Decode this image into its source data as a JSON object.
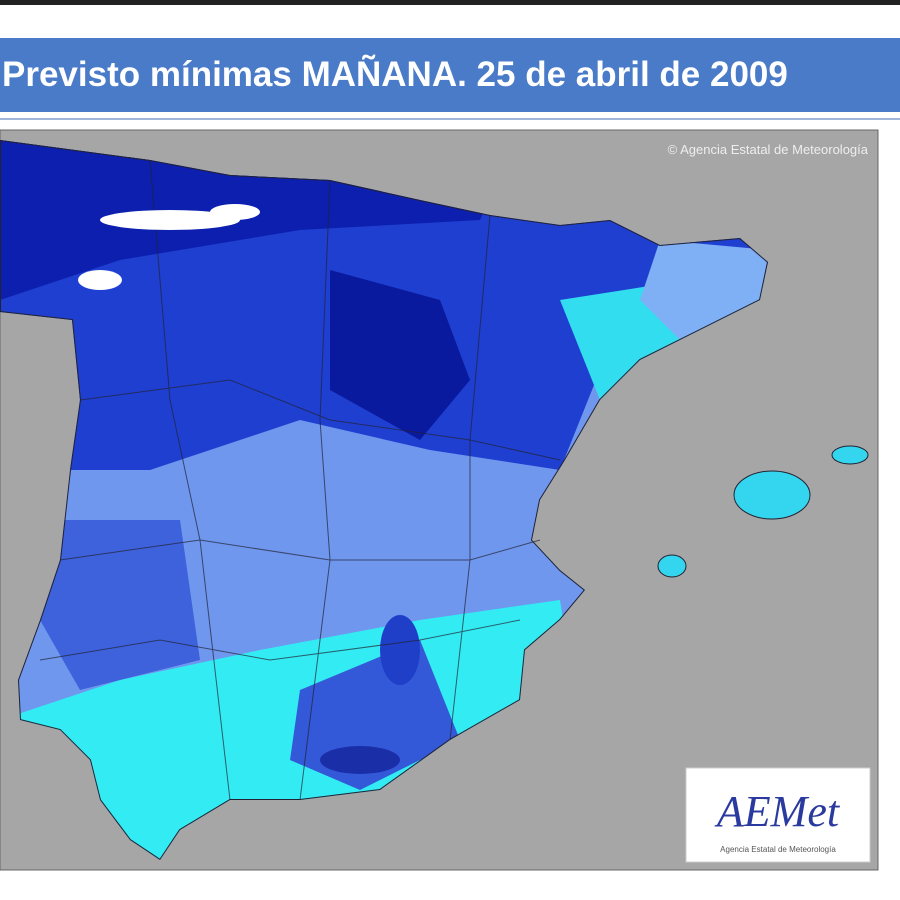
{
  "header": {
    "title": "Previsto mínimas MAÑANA. 25 de abril de 2009"
  },
  "map": {
    "copyright": "© Agencia Estatal de Meteorología",
    "logo": {
      "name": "AEMet",
      "subtitle": "Agencia Estatal de Meteorología"
    }
  }
}
